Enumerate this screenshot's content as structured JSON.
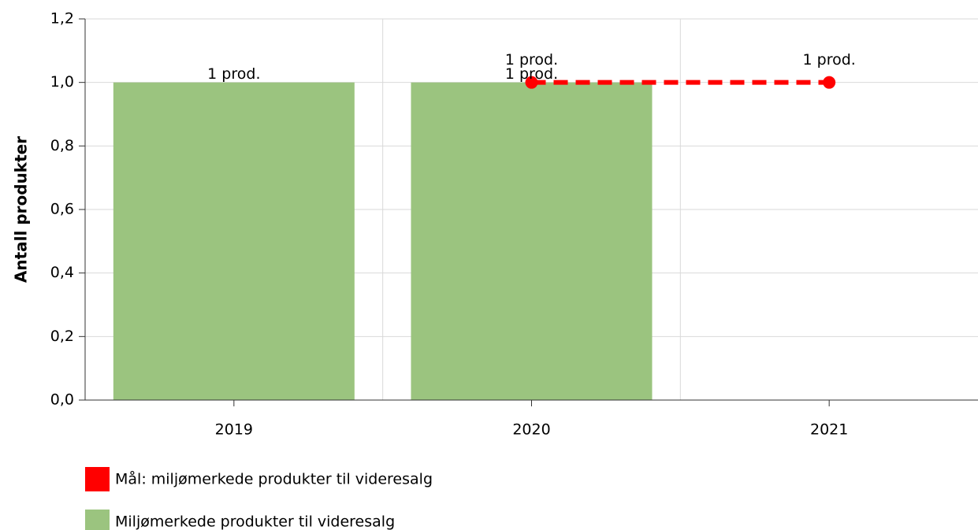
{
  "chart_data": {
    "type": "bar",
    "y_label": "Antall produkter",
    "categories": [
      "2019",
      "2020",
      "2021"
    ],
    "series": [
      {
        "name": "Mål: miljømerkede produkter til videresalg",
        "type": "line",
        "color": "#ff0000",
        "values": [
          null,
          1,
          1
        ],
        "value_labels": [
          null,
          "1 prod.",
          "1 prod."
        ]
      },
      {
        "name": "Miljømerkede produkter til videresalg",
        "type": "bar",
        "color": "#9bc47f",
        "values": [
          1,
          1,
          null
        ],
        "value_labels": [
          "1 prod.",
          "1 prod.",
          null
        ]
      }
    ],
    "ylim": [
      0,
      1.2
    ],
    "yticks": [
      {
        "value": 0,
        "label": "0,0"
      },
      {
        "value": 0.2,
        "label": "0,2"
      },
      {
        "value": 0.4,
        "label": "0,4"
      },
      {
        "value": 0.6,
        "label": "0,6"
      },
      {
        "value": 0.8,
        "label": "0,8"
      },
      {
        "value": 1.0,
        "label": "1,0"
      },
      {
        "value": 1.2,
        "label": "1,2"
      }
    ],
    "grid": true
  }
}
